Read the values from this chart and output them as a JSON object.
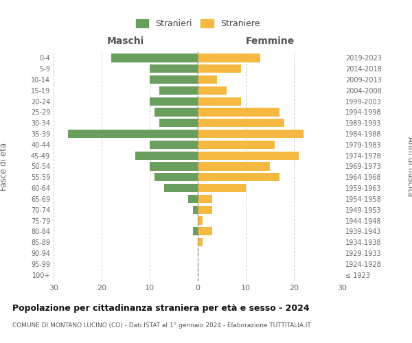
{
  "age_groups": [
    "100+",
    "95-99",
    "90-94",
    "85-89",
    "80-84",
    "75-79",
    "70-74",
    "65-69",
    "60-64",
    "55-59",
    "50-54",
    "45-49",
    "40-44",
    "35-39",
    "30-34",
    "25-29",
    "20-24",
    "15-19",
    "10-14",
    "5-9",
    "0-4"
  ],
  "birth_years": [
    "≤ 1923",
    "1924-1928",
    "1929-1933",
    "1934-1938",
    "1939-1943",
    "1944-1948",
    "1949-1953",
    "1954-1958",
    "1959-1963",
    "1964-1968",
    "1969-1973",
    "1974-1978",
    "1979-1983",
    "1984-1988",
    "1989-1993",
    "1994-1998",
    "1999-2003",
    "2004-2008",
    "2009-2013",
    "2014-2018",
    "2019-2023"
  ],
  "males": [
    0,
    0,
    0,
    0,
    1,
    0,
    1,
    2,
    7,
    9,
    10,
    13,
    10,
    27,
    8,
    9,
    10,
    8,
    10,
    10,
    18
  ],
  "females": [
    0,
    0,
    0,
    1,
    3,
    1,
    3,
    3,
    10,
    17,
    15,
    21,
    16,
    22,
    18,
    17,
    9,
    6,
    4,
    9,
    13
  ],
  "male_color": "#6a9e5e",
  "female_color": "#f5b942",
  "title": "Popolazione per cittadinanza straniera per età e sesso - 2024",
  "subtitle": "COMUNE DI MONTANO LUCINO (CO) - Dati ISTAT al 1° gennaio 2024 - Elaborazione TUTTITALIA.IT",
  "xlabel_left": "Maschi",
  "xlabel_right": "Femmine",
  "ylabel_left": "Fasce di età",
  "ylabel_right": "Anni di nascita",
  "legend_male": "Stranieri",
  "legend_female": "Straniere",
  "xlim": 30,
  "background_color": "#ffffff",
  "grid_color": "#cccccc"
}
